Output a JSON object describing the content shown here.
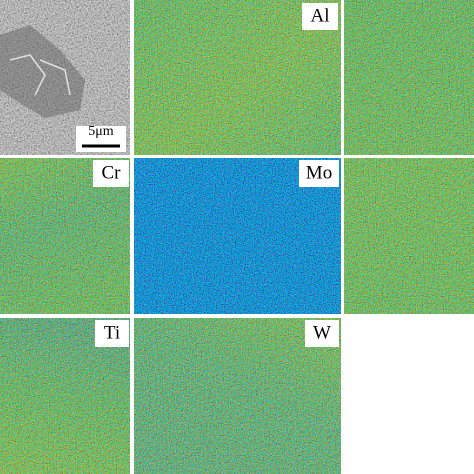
{
  "scale_bar": "5μm",
  "maps": [
    "Al",
    "Cr",
    "Mo",
    "Ti",
    "W"
  ]
}
